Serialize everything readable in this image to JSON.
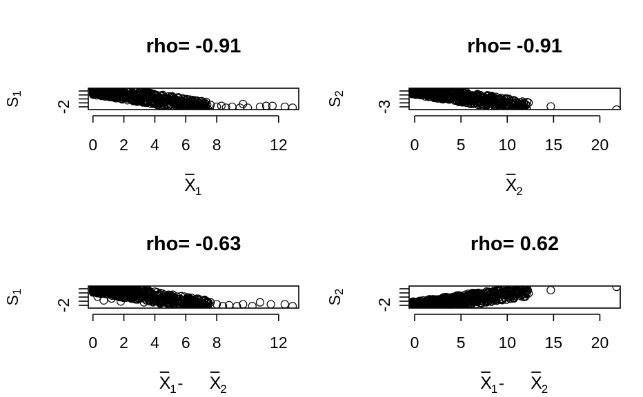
{
  "chart_data": [
    {
      "type": "scatter",
      "title": "rho= -0.91",
      "ylabel": "S",
      "ylabel_sub": "1",
      "xlabel_parts": [
        {
          "bar": true,
          "text": "X",
          "sub": "1"
        }
      ],
      "xticks": [
        "0",
        "2",
        "4",
        "6",
        "8",
        "12"
      ],
      "xtick_values": [
        0,
        2,
        4,
        6,
        8,
        12
      ],
      "yticks": [
        "-2"
      ],
      "ytick_values": [
        -2
      ],
      "xlim": [
        -0.3,
        13.3
      ],
      "ylim": [
        -2.2,
        0.1
      ],
      "grid": false,
      "trend": "negative-decreasing",
      "points": [
        [
          0.0,
          0.0
        ],
        [
          0.2,
          -0.1
        ],
        [
          0.5,
          -0.2
        ],
        [
          0.8,
          -0.4
        ],
        [
          1.0,
          -0.3
        ],
        [
          1.2,
          -0.6
        ],
        [
          1.5,
          -0.5
        ],
        [
          1.8,
          -0.8
        ],
        [
          2.0,
          -0.7
        ],
        [
          2.2,
          -1.0
        ],
        [
          2.5,
          -0.9
        ],
        [
          2.8,
          -1.1
        ],
        [
          3.0,
          -1.0
        ],
        [
          3.3,
          -1.3
        ],
        [
          3.5,
          -1.2
        ],
        [
          3.8,
          -1.4
        ],
        [
          4.0,
          -1.3
        ],
        [
          4.3,
          -1.5
        ],
        [
          4.6,
          -1.4
        ],
        [
          5.0,
          -1.6
        ],
        [
          5.3,
          -1.5
        ],
        [
          5.6,
          -1.7
        ],
        [
          6.0,
          -1.6
        ],
        [
          6.3,
          -1.8
        ],
        [
          6.6,
          -1.7
        ],
        [
          7.0,
          -1.6
        ],
        [
          7.3,
          -1.9
        ],
        [
          7.6,
          -1.7
        ],
        [
          8.0,
          -1.9
        ],
        [
          8.3,
          -1.8
        ],
        [
          8.6,
          -2.0
        ],
        [
          9.0,
          -1.9
        ],
        [
          9.5,
          -2.0
        ],
        [
          9.7,
          -1.6
        ],
        [
          10.0,
          -2.0
        ],
        [
          10.8,
          -1.9
        ],
        [
          11.2,
          -1.8
        ],
        [
          11.6,
          -1.8
        ],
        [
          12.4,
          -1.9
        ],
        [
          12.9,
          -2.0
        ]
      ]
    },
    {
      "type": "scatter",
      "title": "rho= -0.91",
      "ylabel": "S",
      "ylabel_sub": "2",
      "xlabel_parts": [
        {
          "bar": true,
          "text": "X",
          "sub": "2"
        }
      ],
      "xticks": [
        "0",
        "5",
        "10",
        "15",
        "20"
      ],
      "xtick_values": [
        0,
        5,
        10,
        15,
        20
      ],
      "yticks": [
        "-3"
      ],
      "ytick_values": [
        -3
      ],
      "xlim": [
        -0.6,
        22.2
      ],
      "ylim": [
        -3.3,
        0.1
      ],
      "grid": false,
      "trend": "negative-decreasing",
      "points": [
        [
          0.0,
          0.0
        ],
        [
          0.3,
          -0.2
        ],
        [
          0.6,
          -0.4
        ],
        [
          1.0,
          -0.3
        ],
        [
          1.3,
          -0.7
        ],
        [
          1.6,
          -0.6
        ],
        [
          2.0,
          -0.9
        ],
        [
          2.3,
          -0.8
        ],
        [
          2.6,
          -1.1
        ],
        [
          3.0,
          -1.0
        ],
        [
          3.3,
          -1.3
        ],
        [
          3.6,
          -1.2
        ],
        [
          4.0,
          -1.5
        ],
        [
          4.3,
          -1.4
        ],
        [
          4.6,
          -1.6
        ],
        [
          5.0,
          -1.5
        ],
        [
          5.4,
          -1.8
        ],
        [
          5.8,
          -1.7
        ],
        [
          6.2,
          -1.9
        ],
        [
          6.6,
          -1.8
        ],
        [
          7.0,
          -2.0
        ],
        [
          7.5,
          -1.9
        ],
        [
          8.0,
          -2.1
        ],
        [
          8.5,
          -2.0
        ],
        [
          9.0,
          -2.3
        ],
        [
          9.5,
          -2.2
        ],
        [
          10.0,
          -2.4
        ],
        [
          10.5,
          -2.2
        ],
        [
          10.8,
          -2.6
        ],
        [
          11.3,
          -2.5
        ],
        [
          12.3,
          -2.2
        ],
        [
          14.7,
          -2.8
        ],
        [
          21.8,
          -3.3
        ]
      ]
    },
    {
      "type": "scatter",
      "title": "rho= -0.63",
      "ylabel": "S",
      "ylabel_sub": "1",
      "xlabel_parts": [
        {
          "bar": true,
          "text": "X",
          "sub": "1"
        },
        {
          "bar": false,
          "text": " - "
        },
        {
          "bar": true,
          "text": "X",
          "sub": "2"
        }
      ],
      "xticks": [
        "0",
        "2",
        "4",
        "6",
        "8",
        "12"
      ],
      "xtick_values": [
        0,
        2,
        4,
        6,
        8,
        12
      ],
      "yticks": [
        "-2"
      ],
      "ytick_values": [
        -2
      ],
      "xlim": [
        -0.3,
        13.3
      ],
      "ylim": [
        -2.2,
        0.1
      ],
      "grid": false,
      "trend": "negative-decreasing",
      "points": [
        [
          0.3,
          -1.0
        ],
        [
          0.5,
          -0.6
        ],
        [
          0.7,
          -1.4
        ],
        [
          1.0,
          -0.4
        ],
        [
          1.2,
          -1.2
        ],
        [
          1.5,
          -0.2
        ],
        [
          1.8,
          -1.5
        ],
        [
          2.0,
          -0.5
        ],
        [
          2.2,
          -1.0
        ],
        [
          2.5,
          -0.3
        ],
        [
          2.8,
          -1.3
        ],
        [
          3.0,
          -0.6
        ],
        [
          3.3,
          -1.6
        ],
        [
          3.6,
          -0.8
        ],
        [
          4.0,
          -1.2
        ],
        [
          4.3,
          -1.6
        ],
        [
          4.6,
          -1.0
        ],
        [
          5.0,
          -1.4
        ],
        [
          5.3,
          -1.7
        ],
        [
          5.6,
          -1.3
        ],
        [
          6.0,
          -1.6
        ],
        [
          6.3,
          -1.8
        ],
        [
          6.6,
          -1.5
        ],
        [
          7.0,
          -1.7
        ],
        [
          7.3,
          -1.9
        ],
        [
          7.6,
          -1.6
        ],
        [
          8.0,
          -1.8
        ],
        [
          8.4,
          -2.0
        ],
        [
          8.8,
          -1.9
        ],
        [
          9.3,
          -2.0
        ],
        [
          9.7,
          -1.8
        ],
        [
          10.3,
          -2.0
        ],
        [
          10.8,
          -1.6
        ],
        [
          11.5,
          -1.8
        ],
        [
          12.4,
          -1.8
        ],
        [
          12.9,
          -2.0
        ]
      ]
    },
    {
      "type": "scatter",
      "title": "rho= 0.62",
      "ylabel": "S",
      "ylabel_sub": "2",
      "xlabel_parts": [
        {
          "bar": true,
          "text": "X",
          "sub": "1"
        },
        {
          "bar": false,
          "text": " - "
        },
        {
          "bar": true,
          "text": "X",
          "sub": "2"
        }
      ],
      "xticks": [
        "0",
        "5",
        "10",
        "15",
        "20"
      ],
      "xtick_values": [
        0,
        5,
        10,
        15,
        20
      ],
      "yticks": [
        "-2"
      ],
      "ytick_values": [
        -2
      ],
      "xlim": [
        -0.6,
        22.2
      ],
      "ylim": [
        -2.4,
        0.3
      ],
      "grid": false,
      "trend": "positive-increasing",
      "points": [
        [
          0.0,
          -2.3
        ],
        [
          0.3,
          -1.9
        ],
        [
          0.6,
          -2.1
        ],
        [
          1.0,
          -1.7
        ],
        [
          1.3,
          -2.0
        ],
        [
          1.6,
          -1.5
        ],
        [
          2.0,
          -1.8
        ],
        [
          2.3,
          -1.4
        ],
        [
          2.6,
          -1.6
        ],
        [
          3.0,
          -1.3
        ],
        [
          3.3,
          -1.5
        ],
        [
          3.6,
          -1.1
        ],
        [
          4.0,
          -1.3
        ],
        [
          4.3,
          -1.0
        ],
        [
          4.6,
          -1.2
        ],
        [
          5.0,
          -0.9
        ],
        [
          5.4,
          -1.1
        ],
        [
          5.8,
          -0.8
        ],
        [
          6.2,
          -1.0
        ],
        [
          6.6,
          -0.7
        ],
        [
          7.0,
          -0.9
        ],
        [
          7.5,
          -0.6
        ],
        [
          8.0,
          -0.8
        ],
        [
          8.5,
          -0.5
        ],
        [
          9.0,
          -0.7
        ],
        [
          9.5,
          -0.4
        ],
        [
          10.0,
          -0.6
        ],
        [
          10.5,
          -0.3
        ],
        [
          10.8,
          -0.6
        ],
        [
          11.3,
          -0.1
        ],
        [
          12.3,
          -0.6
        ],
        [
          14.7,
          -0.2
        ],
        [
          21.8,
          0.2
        ]
      ]
    }
  ]
}
